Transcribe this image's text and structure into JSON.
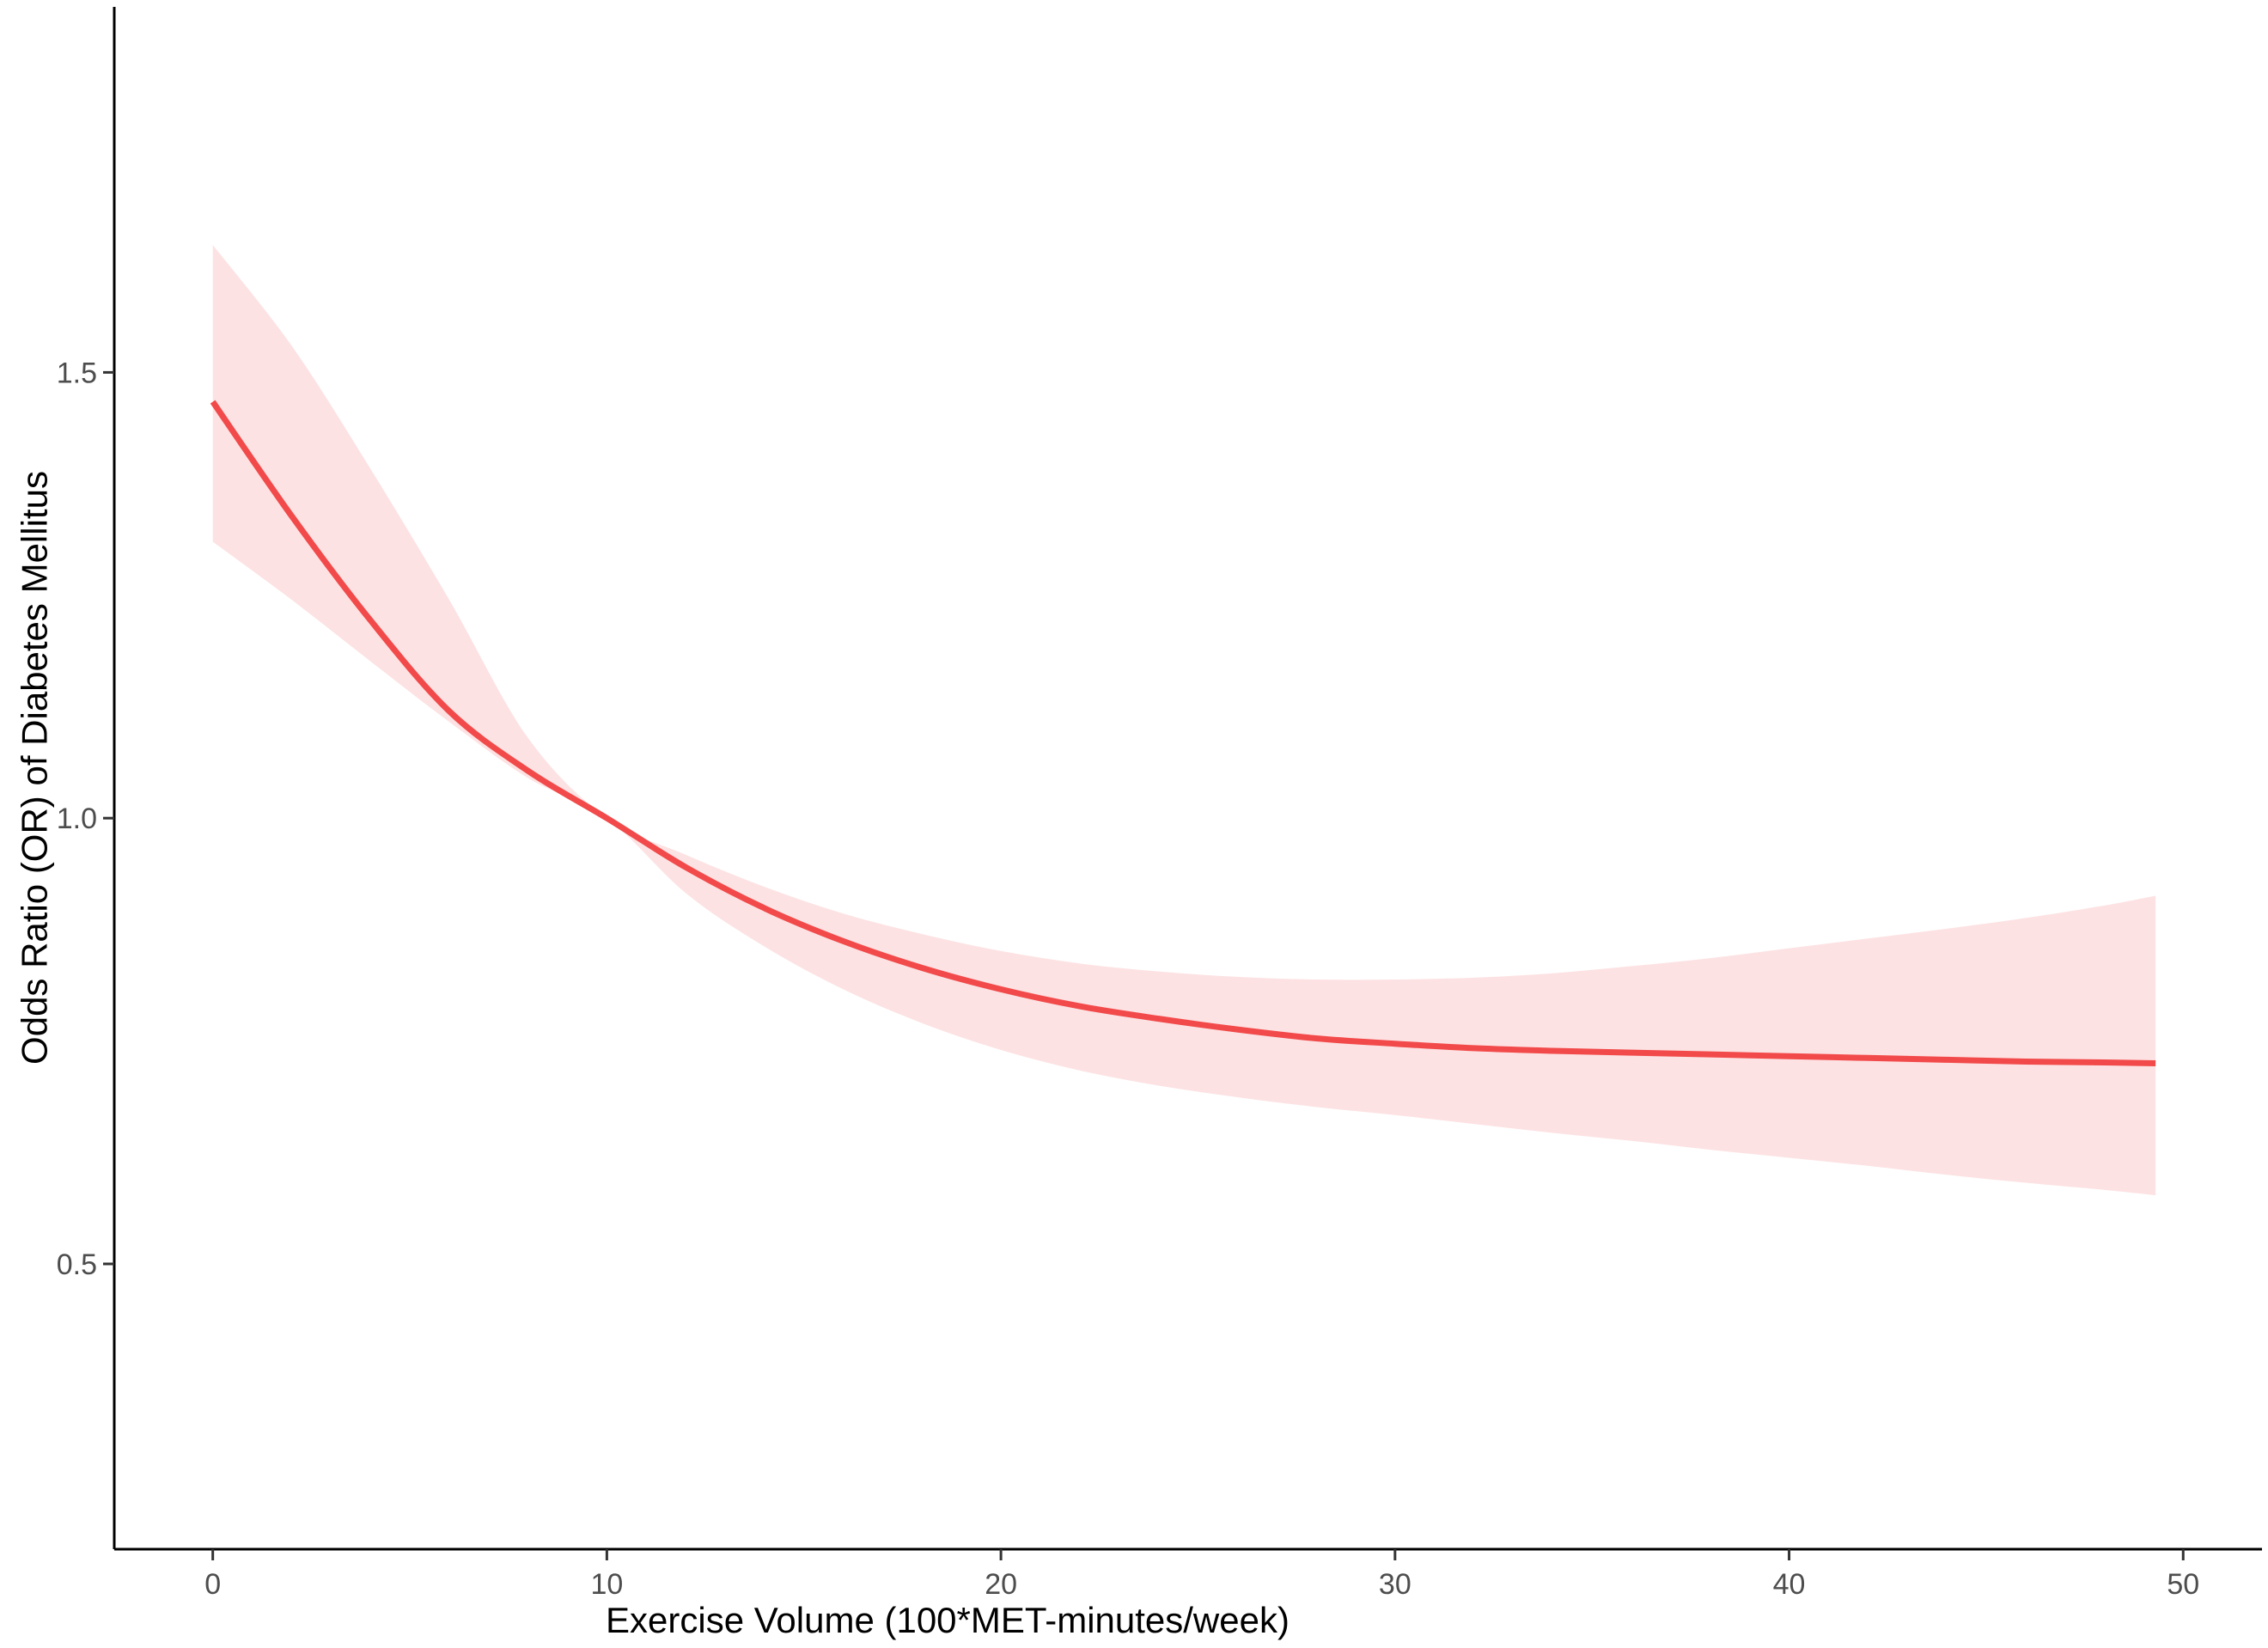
{
  "chart_data": {
    "type": "line",
    "title": "",
    "xlabel": "Exercise Volume (100*MET-minutes/week)",
    "ylabel": "Odds Ratio (OR) of Diabetes Mellitus",
    "xlim": [
      -2.5,
      52
    ],
    "ylim": [
      0.18,
      1.91
    ],
    "x_ticks": [
      0,
      10,
      20,
      30,
      40,
      50
    ],
    "x_tick_labels": [
      "0",
      "10",
      "20",
      "30",
      "40",
      "50"
    ],
    "y_ticks": [
      0.5,
      1.0,
      1.5
    ],
    "y_tick_labels": [
      "0.5",
      "1.0",
      "1.5"
    ],
    "grid": false,
    "legend": "none",
    "colors": {
      "line": "#f24a4a",
      "band": "#fde2e3",
      "axis": "#000000",
      "tick_label": "#4d4d4d"
    },
    "series": [
      {
        "x": [
          0,
          2,
          4,
          6,
          8,
          10,
          12,
          14,
          16,
          18,
          20,
          22,
          24,
          26,
          28,
          30,
          32,
          34,
          36,
          38,
          40,
          42,
          44,
          46,
          48,
          49.3
        ],
        "y": [
          1.467,
          1.339,
          1.222,
          1.12,
          1.053,
          1.0,
          0.945,
          0.899,
          0.862,
          0.832,
          0.808,
          0.789,
          0.775,
          0.763,
          0.753,
          0.747,
          0.742,
          0.739,
          0.737,
          0.735,
          0.733,
          0.731,
          0.729,
          0.727,
          0.726,
          0.725
        ],
        "lower": [
          1.31,
          1.245,
          1.176,
          1.108,
          1.045,
          1.0,
          0.916,
          0.856,
          0.808,
          0.77,
          0.74,
          0.717,
          0.7,
          0.687,
          0.676,
          0.667,
          0.657,
          0.647,
          0.638,
          0.628,
          0.619,
          0.61,
          0.6,
          0.591,
          0.583,
          0.577
        ],
        "upper": [
          1.643,
          1.53,
          1.392,
          1.245,
          1.09,
          1.0,
          0.959,
          0.923,
          0.893,
          0.87,
          0.851,
          0.837,
          0.828,
          0.822,
          0.819,
          0.819,
          0.821,
          0.826,
          0.834,
          0.843,
          0.854,
          0.865,
          0.876,
          0.888,
          0.902,
          0.913
        ]
      }
    ]
  }
}
